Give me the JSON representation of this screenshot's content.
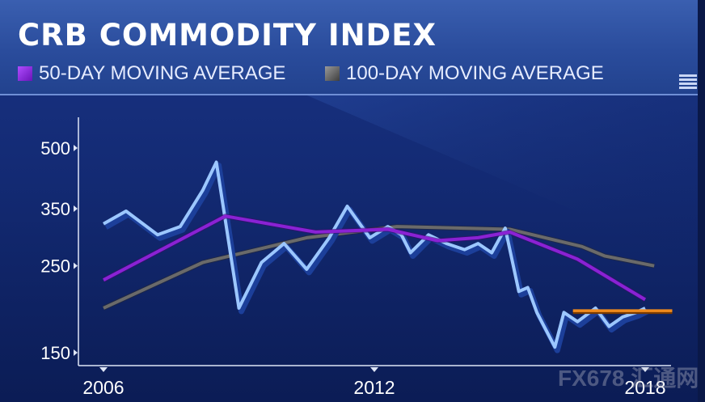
{
  "chart_data": {
    "type": "line",
    "title": "CRB COMMODITY INDEX",
    "x_tick_labels": [
      "2006",
      "2012",
      "2018"
    ],
    "y_tick_labels": [
      "500",
      "350",
      "250",
      "150"
    ],
    "y_ticks": [
      500,
      350,
      250,
      150
    ],
    "y_scale": "log",
    "ylim": [
      135,
      600
    ],
    "xlim": [
      2006,
      2018.6
    ],
    "legend_position": "top-left",
    "series": [
      {
        "name": "",
        "color": "#9cc7ff",
        "x": [
          2006.0,
          2006.5,
          2007.2,
          2007.7,
          2008.2,
          2008.5,
          2009.0,
          2009.5,
          2010.0,
          2010.5,
          2011.0,
          2011.4,
          2011.9,
          2012.3,
          2012.6,
          2012.8,
          2013.2,
          2013.6,
          2014.0,
          2014.3,
          2014.6,
          2014.9,
          2015.2,
          2015.4,
          2015.6,
          2016.0,
          2016.2,
          2016.5,
          2016.9,
          2017.2,
          2017.5,
          2017.8,
          2018.0
        ],
        "y": [
          320,
          345,
          300,
          315,
          390,
          460,
          195,
          255,
          285,
          245,
          295,
          355,
          295,
          315,
          300,
          270,
          300,
          285,
          275,
          285,
          270,
          312,
          215,
          220,
          190,
          155,
          190,
          180,
          195,
          175,
          185,
          190,
          195
        ]
      },
      {
        "name": "50-DAY MOVING AVERAGE",
        "color": "#8a22d4",
        "x": [
          2006.0,
          2008.7,
          2010.7,
          2012.3,
          2013.4,
          2014.3,
          2015.0,
          2016.5,
          2018.0
        ],
        "y": [
          230,
          335,
          305,
          310,
          290,
          295,
          305,
          260,
          205
        ]
      },
      {
        "name": "100-DAY MOVING AVERAGE",
        "color": "#5a5a5a",
        "x": [
          2006.0,
          2008.2,
          2010.5,
          2012.5,
          2015.0,
          2016.6,
          2017.1,
          2018.2
        ],
        "y": [
          195,
          255,
          295,
          315,
          310,
          280,
          265,
          250
        ]
      }
    ],
    "annotations": [
      {
        "type": "horizontal-line",
        "color": "#f08a1c",
        "y": 192,
        "x_start": 2016.4,
        "x_end": 2018.6
      }
    ]
  },
  "watermark": "FX678 汇通网",
  "colors": {
    "header_bg": "#2a4c9c",
    "chart_bg": "#132a73",
    "axis": "#dfe6f7"
  }
}
